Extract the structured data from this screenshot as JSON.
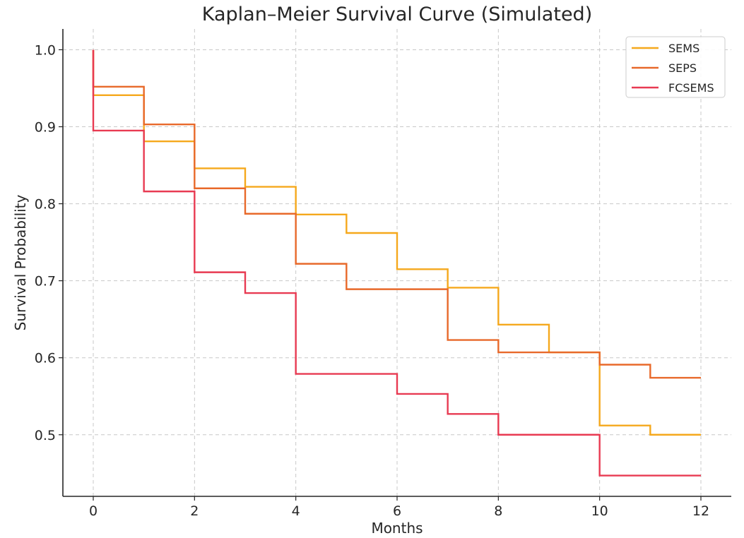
{
  "chart_data": {
    "type": "line",
    "step": true,
    "title": "Kaplan–Meier Survival Curve (Simulated)",
    "xlabel": "Months",
    "ylabel": "Survival Probability",
    "xlim": [
      -0.6,
      12.6
    ],
    "ylim": [
      0.42,
      1.027
    ],
    "xticks": [
      0,
      2,
      4,
      6,
      8,
      10,
      12
    ],
    "yticks": [
      0.5,
      0.6,
      0.7,
      0.8,
      0.9,
      1.0
    ],
    "xtick_labels": [
      "0",
      "2",
      "4",
      "6",
      "8",
      "10",
      "12"
    ],
    "ytick_labels": [
      "0.5",
      "0.6",
      "0.7",
      "0.8",
      "0.9",
      "1.0"
    ],
    "grid": true,
    "legend_position": "top-right",
    "series": [
      {
        "name": "SEMS",
        "color": "#F5A81C",
        "x": [
          0,
          1,
          2,
          3,
          4,
          5,
          6,
          7,
          8,
          9,
          10,
          11,
          12
        ],
        "y": [
          0.941,
          0.881,
          0.846,
          0.822,
          0.786,
          0.762,
          0.715,
          0.691,
          0.643,
          0.607,
          0.512,
          0.5,
          0.5
        ]
      },
      {
        "name": "SEPS",
        "color": "#E8692A",
        "x": [
          0,
          1,
          2,
          3,
          4,
          5,
          6,
          7,
          8,
          9,
          10,
          11,
          12
        ],
        "y": [
          0.952,
          0.903,
          0.82,
          0.787,
          0.722,
          0.689,
          0.689,
          0.623,
          0.607,
          0.607,
          0.591,
          0.574,
          0.574
        ]
      },
      {
        "name": "FCSEMS",
        "color": "#E83A52",
        "x": [
          0,
          1,
          2,
          3,
          4,
          5,
          6,
          7,
          8,
          9,
          10,
          11,
          12
        ],
        "y": [
          0.895,
          0.816,
          0.711,
          0.684,
          0.579,
          0.579,
          0.553,
          0.527,
          0.5,
          0.5,
          0.447,
          0.447,
          0.447
        ]
      }
    ]
  }
}
